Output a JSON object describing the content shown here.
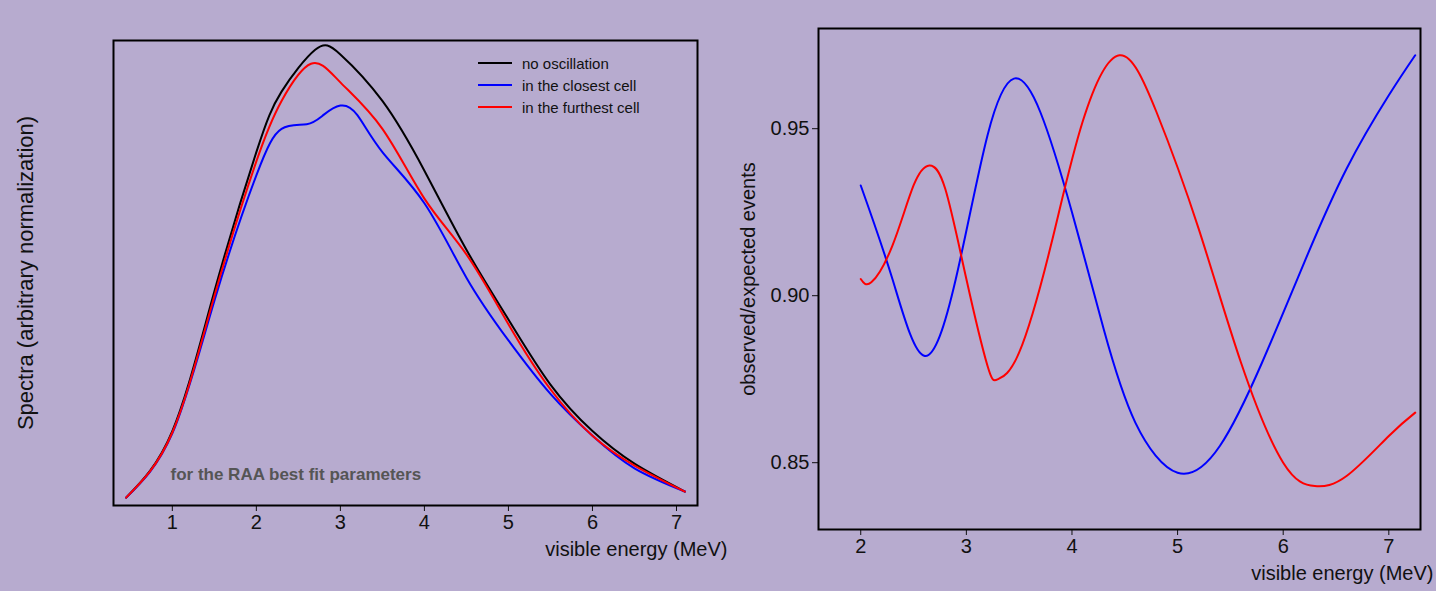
{
  "chart_data": [
    {
      "type": "line",
      "x_label": "visible energy (MeV)",
      "y_label": "Spectra (arbitrary normalization)",
      "annotation": "for the RAA best fit parameters",
      "xlim": [
        0.3,
        7.25
      ],
      "xticks": [
        1,
        2,
        3,
        4,
        5,
        6,
        7
      ],
      "ylim": [
        0,
        1
      ],
      "tick_labels": "x",
      "legend": "top-right",
      "series": [
        {
          "name": "no oscillation",
          "color": "#000000",
          "x": [
            0.45,
            1.0,
            1.5,
            2.0,
            2.3,
            2.7,
            3.0,
            3.5,
            4.0,
            4.5,
            5.0,
            5.5,
            6.0,
            6.5,
            7.1
          ],
          "values": [
            0.017,
            0.16,
            0.46,
            0.76,
            0.89,
            0.98,
            0.97,
            0.87,
            0.72,
            0.55,
            0.4,
            0.26,
            0.16,
            0.09,
            0.03
          ]
        },
        {
          "name": "in the closest cell",
          "color": "#0000ff",
          "x": [
            0.45,
            1.0,
            1.5,
            2.0,
            2.3,
            2.6,
            2.8,
            3.0,
            3.2,
            3.5,
            4.0,
            4.5,
            5.0,
            5.5,
            6.0,
            6.5,
            7.1
          ],
          "values": [
            0.017,
            0.155,
            0.44,
            0.71,
            0.81,
            0.82,
            0.84,
            0.86,
            0.84,
            0.76,
            0.65,
            0.49,
            0.355,
            0.24,
            0.15,
            0.08,
            0.03
          ]
        },
        {
          "name": "in the furthest cell",
          "color": "#ff0000",
          "x": [
            0.45,
            1.0,
            1.5,
            2.0,
            2.3,
            2.65,
            3.0,
            3.5,
            4.0,
            4.5,
            5.0,
            5.5,
            6.0,
            6.5,
            7.1
          ],
          "values": [
            0.017,
            0.157,
            0.45,
            0.74,
            0.87,
            0.95,
            0.91,
            0.81,
            0.66,
            0.54,
            0.39,
            0.25,
            0.15,
            0.086,
            0.03
          ]
        }
      ]
    },
    {
      "type": "line",
      "x_label": "visible energy (MeV)",
      "y_label": "observed/expected events",
      "xlim": [
        1.6,
        7.3
      ],
      "xticks": [
        2,
        3,
        4,
        5,
        6,
        7
      ],
      "ylim": [
        0.83,
        0.98
      ],
      "yticks": [
        0.85,
        {
          "value": 0.9,
          "label": "0.90"
        },
        0.95
      ],
      "series": [
        {
          "color": "#0000ff",
          "x": [
            2.0,
            2.3,
            2.6,
            2.9,
            3.2,
            3.45,
            3.7,
            4.0,
            4.3,
            4.6,
            5.0,
            5.4,
            5.8,
            6.2,
            6.6,
            7.0,
            7.25
          ],
          "values": [
            0.933,
            0.905,
            0.882,
            0.905,
            0.948,
            0.965,
            0.955,
            0.925,
            0.89,
            0.862,
            0.847,
            0.855,
            0.88,
            0.91,
            0.938,
            0.96,
            0.972
          ]
        },
        {
          "color": "#ff0000",
          "x": [
            2.0,
            2.1,
            2.3,
            2.5,
            2.65,
            2.8,
            3.0,
            3.2,
            3.3,
            3.5,
            3.8,
            4.1,
            4.45,
            4.8,
            5.2,
            5.6,
            6.0,
            6.3,
            6.6,
            7.0,
            7.25
          ],
          "values": [
            0.905,
            0.904,
            0.915,
            0.933,
            0.939,
            0.932,
            0.905,
            0.879,
            0.875,
            0.883,
            0.915,
            0.952,
            0.972,
            0.955,
            0.92,
            0.88,
            0.85,
            0.843,
            0.846,
            0.858,
            0.865
          ]
        }
      ]
    }
  ]
}
